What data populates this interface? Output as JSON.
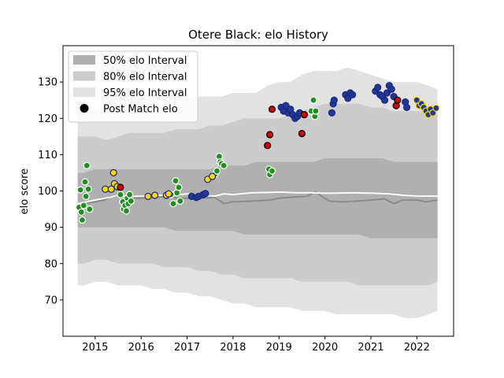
{
  "chart_data": {
    "type": "scatter",
    "title": "Otere Black: elo History",
    "xlabel": "",
    "ylabel": "elo score",
    "xlim": [
      2014.3,
      2022.8
    ],
    "ylim": [
      60.0,
      140.0
    ],
    "x_ticks": [
      2015,
      2016,
      2017,
      2018,
      2019,
      2020,
      2021,
      2022
    ],
    "x_tick_labels": [
      "2015",
      "2016",
      "2017",
      "2018",
      "2019",
      "2020",
      "2021",
      "2022"
    ],
    "y_ticks": [
      70,
      80,
      90,
      100,
      110,
      120,
      130
    ],
    "y_tick_labels": [
      "70",
      "80",
      "90",
      "100",
      "110",
      "120",
      "130"
    ],
    "grid": false,
    "legend": {
      "position": "top-left",
      "entries": [
        {
          "label": "50% elo Interval",
          "symbol": "band",
          "color": "#b0b0b0"
        },
        {
          "label": "80% elo Interval",
          "symbol": "band",
          "color": "#cccccc"
        },
        {
          "label": "95% elo Interval",
          "symbol": "band",
          "color": "#e2e2e2"
        },
        {
          "label": "Post Match elo",
          "symbol": "dot",
          "color": "#000000"
        }
      ]
    },
    "bands": {
      "x": [
        2014.62,
        2014.75,
        2015.0,
        2015.25,
        2015.5,
        2015.75,
        2016.0,
        2016.25,
        2016.5,
        2016.75,
        2017.0,
        2017.25,
        2017.5,
        2017.75,
        2018.0,
        2018.25,
        2018.5,
        2018.75,
        2019.0,
        2019.25,
        2019.5,
        2019.75,
        2020.0,
        2020.25,
        2020.5,
        2020.75,
        2021.0,
        2021.25,
        2021.5,
        2021.75,
        2022.0,
        2022.25,
        2022.45
      ],
      "p95_upper": [
        124,
        124,
        123,
        122,
        123,
        125,
        124,
        124,
        124,
        125,
        125,
        126,
        126,
        126,
        127,
        127,
        127,
        129,
        130,
        130,
        132,
        133,
        133,
        133,
        134,
        133,
        132,
        131,
        130,
        130,
        130,
        129,
        128
      ],
      "p95_lower": [
        74,
        74,
        75,
        75,
        74,
        74,
        74,
        73,
        73,
        72,
        72,
        71,
        71,
        70,
        69,
        69,
        68,
        68,
        68,
        68,
        67,
        67,
        67,
        66,
        66,
        66,
        66,
        66,
        66,
        65,
        65,
        66,
        67
      ],
      "p80_upper": [
        115,
        115,
        115,
        114,
        115,
        116,
        116,
        116,
        116,
        117,
        117,
        117,
        118,
        118,
        119,
        120,
        120,
        120,
        120,
        121,
        122,
        123,
        124,
        124,
        124,
        124,
        123,
        123,
        122,
        122,
        122,
        122,
        121
      ],
      "p80_lower": [
        80,
        80,
        81,
        81,
        80,
        80,
        80,
        80,
        79,
        79,
        79,
        78,
        78,
        77,
        77,
        76,
        76,
        76,
        76,
        76,
        75,
        75,
        75,
        75,
        75,
        74,
        74,
        74,
        74,
        74,
        74,
        74,
        75
      ],
      "p50_upper": [
        105,
        105,
        106,
        106,
        106,
        106,
        106,
        106,
        106,
        106,
        106,
        106,
        106,
        107,
        107,
        107,
        108,
        108,
        108,
        108,
        108,
        108,
        109,
        109,
        109,
        109,
        109,
        109,
        108,
        108,
        108,
        108,
        108
      ],
      "p50_lower": [
        90,
        90,
        90,
        90,
        90,
        90,
        90,
        90,
        90,
        89,
        89,
        89,
        89,
        89,
        89,
        88,
        88,
        88,
        88,
        88,
        88,
        88,
        88,
        88,
        88,
        88,
        87,
        87,
        87,
        87,
        87,
        87,
        87
      ]
    },
    "series": [
      {
        "style": "line",
        "color": "#888888",
        "x": [
          2014.62,
          2014.8,
          2015.0,
          2015.2,
          2015.35,
          2015.5,
          2015.65,
          2015.8,
          2016.0,
          2016.3,
          2016.6,
          2016.8,
          2017.0,
          2017.3,
          2017.6,
          2017.8,
          2018.0,
          2018.4,
          2018.8,
          2019.0,
          2019.3,
          2019.6,
          2019.8,
          2019.95,
          2020.1,
          2020.4,
          2020.7,
          2021.0,
          2021.3,
          2021.5,
          2021.7,
          2022.0,
          2022.2,
          2022.45
        ],
        "y": [
          96,
          96.5,
          97,
          97.5,
          98.5,
          98.5,
          97.5,
          98,
          98,
          98.2,
          98.5,
          98,
          98,
          98,
          98.2,
          96.5,
          97,
          97.2,
          97.5,
          98,
          98.3,
          98.5,
          99.8,
          98.3,
          97.2,
          97,
          97.2,
          97.5,
          97.8,
          96.5,
          97.5,
          97.5,
          97,
          97.5
        ]
      },
      {
        "style": "line",
        "color": "#ffffff",
        "x": [
          2014.62,
          2014.8,
          2015.0,
          2015.3,
          2015.5,
          2015.8,
          2016.0,
          2016.4,
          2016.8,
          2017.0,
          2017.3,
          2017.6,
          2017.8,
          2018.0,
          2018.4,
          2018.8,
          2019.0,
          2019.4,
          2019.7,
          2019.95,
          2020.2,
          2020.6,
          2021.0,
          2021.4,
          2021.7,
          2022.0,
          2022.45
        ],
        "y": [
          96.5,
          97,
          97.5,
          98.2,
          98.8,
          98.5,
          98.6,
          98.8,
          99,
          99.2,
          98.8,
          98.6,
          99.2,
          99,
          99.5,
          99.6,
          99.7,
          99.5,
          99.5,
          99.4,
          99.4,
          99.5,
          99.4,
          99.2,
          98.8,
          98.6,
          98.6
        ]
      },
      {
        "style": "points",
        "fill": "#1f8f1f",
        "edge": "#ffffff",
        "label": "Post Match elo",
        "x": [
          2014.65,
          2014.68,
          2014.7,
          2014.72,
          2014.75,
          2014.78,
          2014.8,
          2014.82,
          2014.85,
          2014.88,
          2015.55,
          2015.6,
          2015.62,
          2015.65,
          2015.68,
          2015.7,
          2015.72,
          2015.75,
          2015.78,
          2016.65,
          2016.7,
          2016.75,
          2016.78,
          2016.82,
          2016.85,
          2017.6,
          2017.65,
          2017.7,
          2017.72,
          2017.75,
          2017.8,
          2018.78,
          2018.8,
          2018.85,
          2019.7,
          2019.75,
          2019.78,
          2019.8
        ],
        "y": [
          95.5,
          100.3,
          94.2,
          92,
          96,
          102.5,
          98.5,
          107,
          100.5,
          95,
          99,
          97,
          95,
          96,
          94.5,
          98,
          96.5,
          99,
          97.2,
          99,
          96.5,
          102.8,
          99.5,
          101,
          97.2,
          104.5,
          105.5,
          109.5,
          108,
          107.5,
          107,
          106,
          104.5,
          105.5,
          122,
          125,
          120.5,
          122
        ]
      },
      {
        "style": "points",
        "fill": "#ffd700",
        "edge": "#1a237e",
        "label": "Post Match elo",
        "x": [
          2015.22,
          2015.35,
          2015.4,
          2015.42,
          2015.48,
          2016.15,
          2016.3,
          2016.55,
          2016.6,
          2017.45,
          2017.55
        ],
        "y": [
          100.5,
          100.5,
          105,
          102,
          101.2,
          98.5,
          98.8,
          98.8,
          99.2,
          103.2,
          104
        ]
      },
      {
        "style": "points",
        "fill": "#1f3a93",
        "edge": "#1a237e",
        "label": "Post Match elo",
        "x": [
          2017.1,
          2017.2,
          2017.25,
          2017.35,
          2017.4,
          2019.05,
          2019.1,
          2019.15,
          2019.2,
          2019.25,
          2019.3,
          2019.35,
          2019.4,
          2019.45,
          2020.15,
          2020.18,
          2020.2,
          2020.45,
          2020.5,
          2020.55,
          2020.6,
          2021.1,
          2021.15,
          2021.2,
          2021.25,
          2021.3,
          2021.35,
          2021.4,
          2021.45,
          2021.5,
          2021.75,
          2021.78
        ],
        "y": [
          98.5,
          98.2,
          98.5,
          99,
          99.3,
          123,
          122,
          123.5,
          121.5,
          122.5,
          121,
          120,
          120.5,
          121.5,
          121.5,
          124,
          125,
          126.5,
          125.5,
          127,
          126.5,
          127.5,
          128.5,
          126.5,
          126,
          125,
          127,
          129,
          128,
          126,
          124.5,
          123
        ]
      },
      {
        "style": "points",
        "fill": "#1f3a93",
        "edge": "#ffd700",
        "label": "Post Match elo",
        "x": [
          2022.0,
          2022.05,
          2022.1,
          2022.15,
          2022.2,
          2022.25,
          2022.3,
          2022.35,
          2022.42
        ],
        "y": [
          125,
          123.5,
          124,
          123,
          122,
          121,
          122.5,
          121.5,
          122.8
        ]
      },
      {
        "style": "points",
        "fill": "#cc0000",
        "edge": "#000000",
        "label": "Post Match elo",
        "x": [
          2015.55,
          2018.75,
          2018.8,
          2018.85,
          2019.5,
          2019.55,
          2021.55,
          2021.58
        ],
        "y": [
          101,
          112.5,
          115.5,
          122.5,
          115.8,
          121,
          123.5,
          125
        ]
      }
    ]
  }
}
